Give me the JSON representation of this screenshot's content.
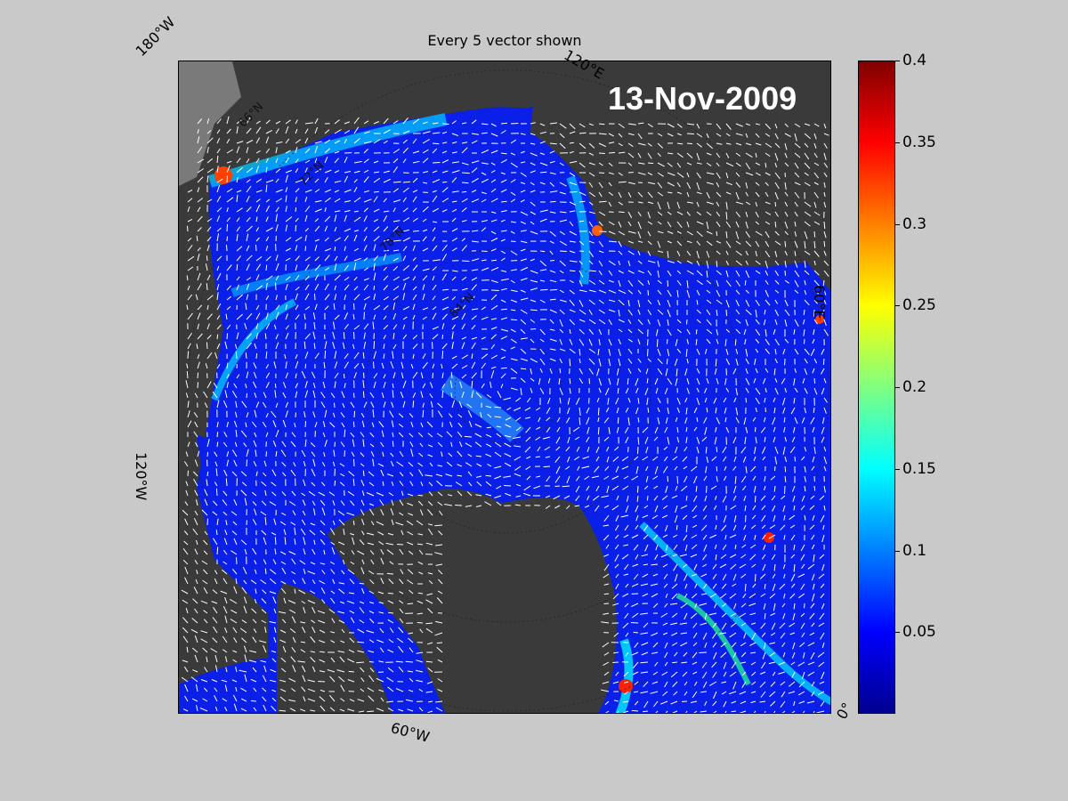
{
  "map": {
    "title": "Every 5 vector shown",
    "date": "13-Nov-2009",
    "longitude_labels": {
      "w180": "180°W",
      "e120": "120°E",
      "e60": "60°E",
      "w120": "120°W",
      "w60": "60°W",
      "zero": "0°"
    },
    "latitude_labels": [
      "66°N",
      "72°N",
      "78°N",
      "84°N"
    ]
  },
  "colorbar": {
    "min": 0,
    "max": 0.4,
    "ticks": [
      "0.4",
      "0.35",
      "0.3",
      "0.25",
      "0.2",
      "0.15",
      "0.1",
      "0.05"
    ],
    "tick_values": [
      0.4,
      0.35,
      0.3,
      0.25,
      0.2,
      0.15,
      0.1,
      0.05
    ],
    "colormap": "jet"
  },
  "colors": {
    "background": "#c9c9c9",
    "land": "#3a3a3a",
    "ocean_low": "#0000d0",
    "vectors": "#ffffff"
  }
}
